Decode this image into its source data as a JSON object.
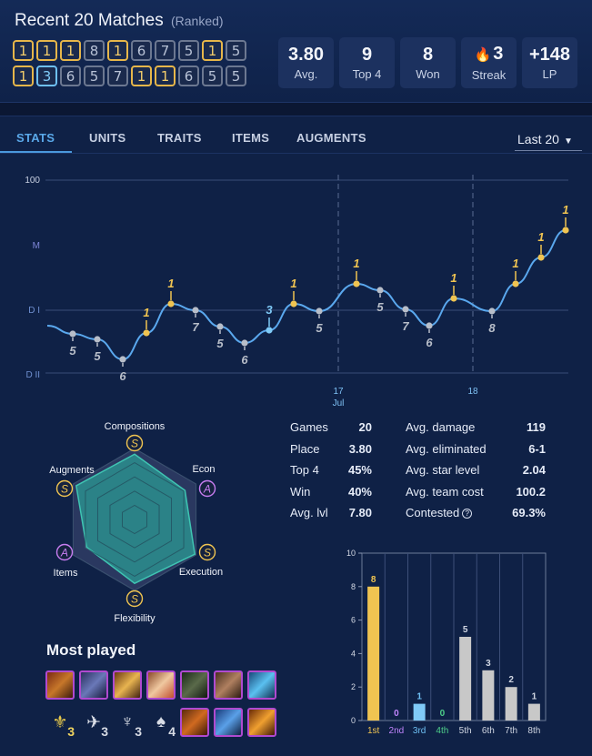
{
  "header": {
    "title": "Recent 20 Matches",
    "subtitle": "(Ranked)",
    "placements_row1": [
      "1",
      "1",
      "1",
      "8",
      "1",
      "6",
      "7",
      "5",
      "1",
      "5"
    ],
    "placements_row2": [
      "1",
      "3",
      "6",
      "5",
      "7",
      "1",
      "1",
      "6",
      "5",
      "5"
    ],
    "tiles": [
      {
        "value": "3.80",
        "label": "Avg."
      },
      {
        "value": "9",
        "label": "Top 4"
      },
      {
        "value": "8",
        "label": "Won"
      },
      {
        "value": "3",
        "label": "Streak",
        "icon": "fire-icon"
      },
      {
        "value": "+148",
        "label": "LP"
      }
    ]
  },
  "tabs": [
    "STATS",
    "UNITS",
    "TRAITS",
    "ITEMS",
    "AUGMENTS"
  ],
  "active_tab": "STATS",
  "range_select": "Last 20",
  "lp_chart": {
    "y_labels": [
      "100",
      "M",
      "D I",
      "D II"
    ],
    "x_labels": [
      {
        "day": "17",
        "month": "Jul"
      },
      {
        "day": "18",
        "month": ""
      }
    ],
    "point_labels": [
      "5",
      "5",
      "6",
      "1",
      "1",
      "7",
      "5",
      "6",
      "3",
      "1",
      "5",
      "1",
      "5",
      "7",
      "6",
      "1",
      "8",
      "1",
      "1",
      "1"
    ]
  },
  "radar": {
    "axes": [
      "Compositions",
      "Econ",
      "Execution",
      "Flexibility",
      "Items",
      "Augments"
    ],
    "grades": [
      "S",
      "A",
      "S",
      "S",
      "A",
      "S"
    ]
  },
  "stats_left": [
    {
      "k": "Games",
      "v": "20"
    },
    {
      "k": "Place",
      "v": "3.80"
    },
    {
      "k": "Top 4",
      "v": "45%"
    },
    {
      "k": "Win",
      "v": "40%"
    },
    {
      "k": "Avg. lvl",
      "v": "7.80"
    }
  ],
  "stats_right": [
    {
      "k": "Avg. damage",
      "v": "119"
    },
    {
      "k": "Avg. eliminated",
      "v": "6-1"
    },
    {
      "k": "Avg. star level",
      "v": "2.04"
    },
    {
      "k": "Avg. team cost",
      "v": "100.2"
    },
    {
      "k": "Contested",
      "v": "69.3%"
    }
  ],
  "most_played": {
    "title": "Most played",
    "trait_counts": [
      "3",
      "3",
      "3",
      "4"
    ]
  },
  "chart_data": {
    "type": "bar",
    "categories": [
      "1st",
      "2nd",
      "3rd",
      "4th",
      "5th",
      "6th",
      "7th",
      "8th"
    ],
    "values": [
      8,
      0,
      1,
      0,
      5,
      3,
      2,
      1
    ],
    "ylim": [
      0,
      10
    ],
    "y_ticks": [
      "0",
      "2",
      "4",
      "6",
      "8",
      "10"
    ],
    "colors": [
      "#f0c451",
      "#b57bf0",
      "#7fcaf7",
      "#4ed08a",
      "#c8c8c8",
      "#c8c8c8",
      "#c8c8c8",
      "#c8c8c8"
    ],
    "label_colors": [
      "#f0c451",
      "#c084fc",
      "#6ec0f4",
      "#4ed08a",
      "#d0d6e2",
      "#d0d6e2",
      "#d0d6e2",
      "#d0d6e2"
    ]
  }
}
